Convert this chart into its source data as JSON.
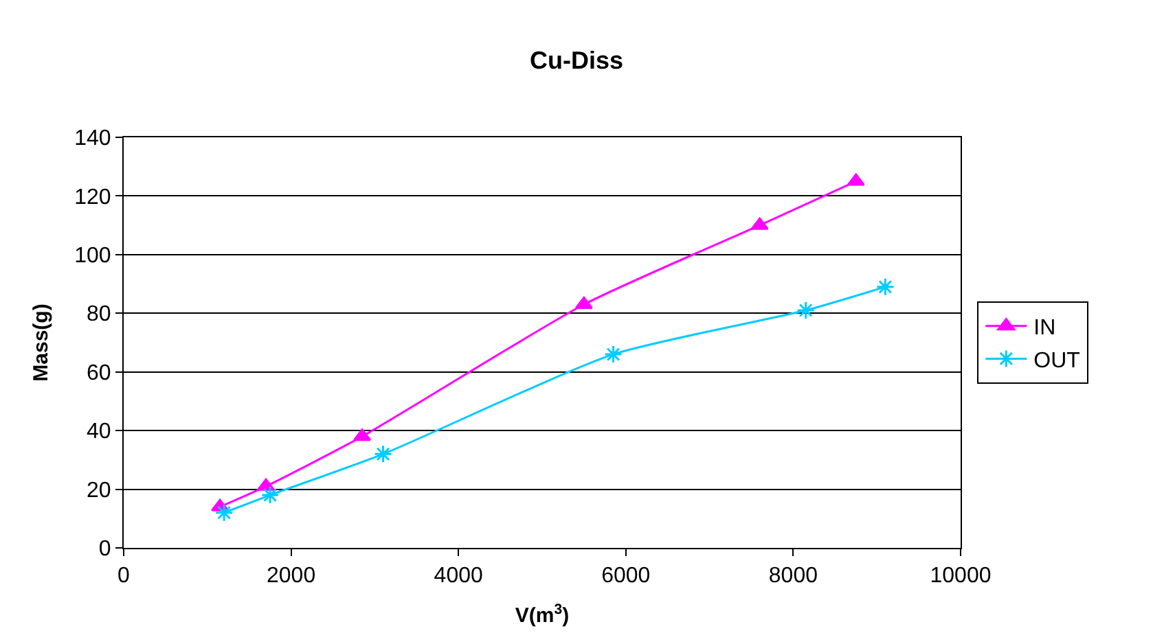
{
  "chart_data": {
    "type": "line",
    "title": "Cu-Diss",
    "xlabel": "V(m$^{3}$)",
    "ylabel": "Mass(g)",
    "xlim": [
      0,
      10000
    ],
    "xticks": [
      0,
      2000,
      4000,
      6000,
      8000,
      10000
    ],
    "ylim": [
      0,
      140
    ],
    "yticks": [
      0,
      20,
      40,
      60,
      80,
      100,
      120,
      140
    ],
    "grid": "y",
    "legend": "right",
    "series": [
      {
        "name": "IN",
        "color": "#ff00ff",
        "marker": "triangle",
        "x": [
          1150,
          1700,
          2850,
          5500,
          7600,
          8750
        ],
        "values": [
          14,
          21,
          38,
          83,
          110,
          125
        ]
      },
      {
        "name": "OUT",
        "color": "#00ccff",
        "marker": "cross",
        "x": [
          1200,
          1750,
          3100,
          5850,
          8150,
          9100
        ],
        "values": [
          12,
          18,
          32,
          66,
          81,
          89
        ]
      }
    ]
  }
}
